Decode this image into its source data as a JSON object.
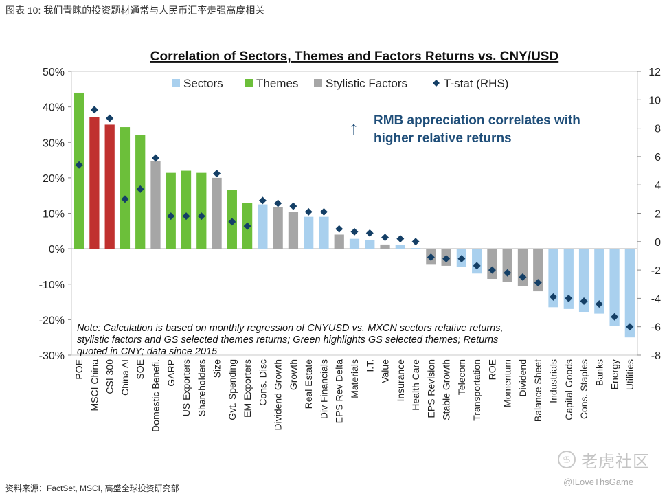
{
  "figure_title": "图表 10: 我们青睐的投资题材通常与人民币汇率走强高度相关",
  "source": "资料来源：FactSet, MSCI, 高盛全球投资研究部",
  "watermark": {
    "name": "老虎社区",
    "user": "@ILoveThsGame",
    "logo_glyph": "♋"
  },
  "colors": {
    "Sectors": "#a9d0ee",
    "Themes": "#6cbf3a",
    "Stylistic Factors": "#a6a6a6",
    "Highlight": "#c0312f",
    "Tstat": "#143f66",
    "Annotation": "#1f4e79"
  },
  "chart_data": {
    "type": "bar",
    "title": "Correlation of Sectors, Themes and Factors Returns vs. CNY/USD",
    "ylim": [
      -0.3,
      0.5
    ],
    "y_ticks": [
      -0.3,
      -0.2,
      -0.1,
      0.0,
      0.1,
      0.2,
      0.3,
      0.4,
      0.5
    ],
    "y_tick_labels": [
      "-30%",
      "-20%",
      "-10%",
      "0%",
      "10%",
      "20%",
      "30%",
      "40%",
      "50%"
    ],
    "y2lim": [
      -8,
      12
    ],
    "y2_ticks": [
      -8,
      -6,
      -4,
      -2,
      0,
      2,
      4,
      6,
      8,
      10,
      12
    ],
    "y2_tick_labels": [
      "-8",
      "-6",
      "-4",
      "-2",
      "0",
      "2",
      "4",
      "6",
      "8",
      "10",
      "12"
    ],
    "legend": [
      "Sectors",
      "Themes",
      "Stylistic Factors",
      "T-stat (RHS)"
    ],
    "legend_position": "top",
    "annotation": {
      "arrow": "↑",
      "line1": "RMB appreciation correlates with",
      "line2": "higher relative returns"
    },
    "note": [
      "Note: Calculation is based on monthly regression of CNYUSD vs. MXCN sectors relative returns,",
      "stylistic factors and GS selected themes returns; Green highlights GS selected themes; Returns",
      "quoted in CNY; data since 2015"
    ],
    "categories": [
      "POE",
      "MSCI China",
      "CSI 300",
      "China AI",
      "SOE",
      "Domestic Benefi.",
      "GARP",
      "US Exporters",
      "Shareholders",
      "Size",
      "Gvt. Spending",
      "EM Exporters",
      "Cons. Disc",
      "Dividend Growth",
      "Growth",
      "Real Estate",
      "Div Financials",
      "EPS Rev Delta",
      "Materials",
      "I.T.",
      "Value",
      "Insurance",
      "Health Care",
      "EPS Revision",
      "Stable Growth",
      "Telecom",
      "Transportation",
      "ROE",
      "Momentum",
      "Dividend",
      "Balance Sheet",
      "Industrials",
      "Capital Goods",
      "Cons. Staples",
      "Banks",
      "Energy",
      "Utilities"
    ],
    "groups": [
      "Themes",
      "Highlight",
      "Highlight",
      "Themes",
      "Themes",
      "Stylistic Factors",
      "Themes",
      "Themes",
      "Themes",
      "Stylistic Factors",
      "Themes",
      "Themes",
      "Sectors",
      "Stylistic Factors",
      "Stylistic Factors",
      "Sectors",
      "Sectors",
      "Stylistic Factors",
      "Sectors",
      "Sectors",
      "Stylistic Factors",
      "Sectors",
      "Sectors",
      "Stylistic Factors",
      "Stylistic Factors",
      "Sectors",
      "Sectors",
      "Stylistic Factors",
      "Stylistic Factors",
      "Stylistic Factors",
      "Stylistic Factors",
      "Sectors",
      "Sectors",
      "Sectors",
      "Sectors",
      "Sectors",
      "Sectors"
    ],
    "values": [
      0.44,
      0.372,
      0.35,
      0.343,
      0.32,
      0.248,
      0.214,
      0.22,
      0.214,
      0.2,
      0.165,
      0.13,
      0.125,
      0.117,
      0.104,
      0.09,
      0.09,
      0.04,
      0.028,
      0.024,
      0.012,
      0.01,
      0.002,
      -0.045,
      -0.048,
      -0.052,
      -0.07,
      -0.085,
      -0.093,
      -0.105,
      -0.12,
      -0.165,
      -0.17,
      -0.178,
      -0.183,
      -0.218,
      -0.25
    ],
    "tstat": [
      5.4,
      9.3,
      8.7,
      3.0,
      3.7,
      5.9,
      1.8,
      1.8,
      1.8,
      4.8,
      1.4,
      1.1,
      2.9,
      2.7,
      2.5,
      2.1,
      2.1,
      0.9,
      0.7,
      0.6,
      0.3,
      0.2,
      0.0,
      -1.1,
      -1.2,
      -1.2,
      -1.7,
      -2.0,
      -2.2,
      -2.5,
      -2.9,
      -3.9,
      -4.0,
      -4.2,
      -4.4,
      -5.3,
      -6.0
    ]
  }
}
